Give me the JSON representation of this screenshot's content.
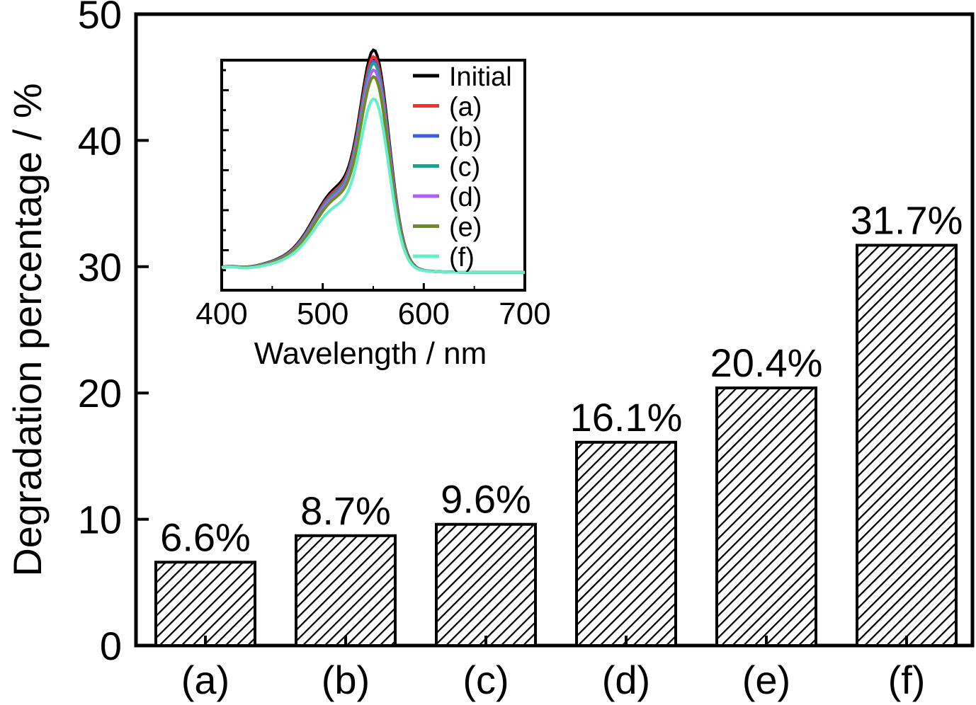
{
  "chart_data": [
    {
      "type": "bar",
      "title": "",
      "xlabel": "",
      "ylabel": "Degradation percentage / %",
      "ylim": [
        0,
        50
      ],
      "yticks": [
        0,
        10,
        20,
        30,
        40,
        50
      ],
      "categories": [
        "(a)",
        "(b)",
        "(c)",
        "(d)",
        "(e)",
        "(f)"
      ],
      "values": [
        6.6,
        8.7,
        9.6,
        16.1,
        20.4,
        31.7
      ],
      "value_labels": [
        "6.6%",
        "8.7%",
        "9.6%",
        "16.1%",
        "20.4%",
        "31.7%"
      ],
      "bar_fill": "hatched diagonal",
      "bar_color": "#000000"
    },
    {
      "type": "line",
      "role": "inset",
      "xlabel": "Wavelength / nm",
      "ylabel": "",
      "xlim": [
        400,
        700
      ],
      "xticks": [
        400,
        500,
        600,
        700
      ],
      "ylim": [
        0,
        1.1
      ],
      "legend_position": "top-right",
      "series": [
        {
          "name": "Initial",
          "color": "#000000",
          "peak": 1.0
        },
        {
          "name": "(a)",
          "color": "#ff2a2a",
          "peak": 0.97
        },
        {
          "name": "(b)",
          "color": "#3b5fe0",
          "peak": 0.95
        },
        {
          "name": "(c)",
          "color": "#2a9d8f",
          "peak": 0.94
        },
        {
          "name": "(d)",
          "color": "#b35cff",
          "peak": 0.91
        },
        {
          "name": "(e)",
          "color": "#6b8e23",
          "peak": 0.88
        },
        {
          "name": "(f)",
          "color": "#66eec9",
          "peak": 0.78
        }
      ]
    }
  ]
}
